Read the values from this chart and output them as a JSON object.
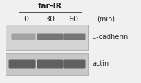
{
  "title": "far-IR",
  "time_labels": [
    "0",
    "30",
    "60"
  ],
  "time_unit": "(min)",
  "protein_labels": [
    "E-cadherin",
    "actin"
  ],
  "background_color": "#f0f0f0",
  "panel_bg_ecad": "#d4d4d4",
  "panel_bg_actin": "#c8c8c8",
  "band_color_ecad_0": "#888888",
  "band_color_ecad_1": "#666666",
  "band_color_ecad_2": "#666666",
  "band_color_actin": "#555555",
  "fig_width": 2.05,
  "fig_height": 1.21,
  "dpi": 100
}
